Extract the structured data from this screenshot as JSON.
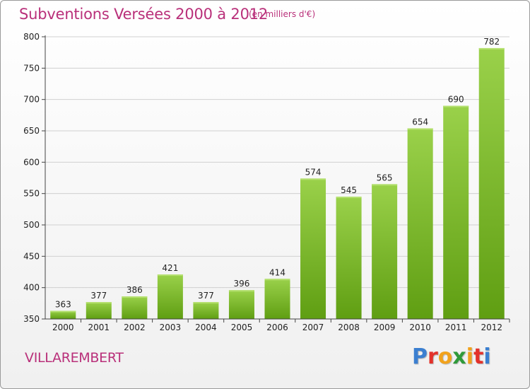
{
  "header": {
    "title": "Subventions Versées 2000 à 2012",
    "subtitle": "(en milliers d'€)"
  },
  "footer": {
    "commune": "VILLAREMBERT",
    "logo_letters": [
      "P",
      "r",
      "o",
      "x",
      "i",
      "t",
      "i"
    ],
    "logo_colors": [
      "#3b7fd0",
      "#e3322b",
      "#f1a21c",
      "#2f9a3a",
      "#f1a21c",
      "#e3322b",
      "#3b7fd0"
    ]
  },
  "colors": {
    "bar_top": "#9ad14a",
    "bar_bottom": "#5f9e12",
    "title": "#b9307a",
    "grid": "#d0d0d0",
    "axis": "#444444"
  },
  "chart_data": {
    "type": "bar",
    "categories": [
      "2000",
      "2001",
      "2002",
      "2003",
      "2004",
      "2005",
      "2006",
      "2007",
      "2008",
      "2009",
      "2010",
      "2011",
      "2012"
    ],
    "values": [
      363,
      377,
      386,
      421,
      377,
      396,
      414,
      574,
      545,
      565,
      654,
      690,
      782
    ],
    "ylim": [
      350,
      800
    ],
    "yticks": [
      350,
      400,
      450,
      500,
      550,
      600,
      650,
      700,
      750,
      800
    ],
    "grid": true
  }
}
